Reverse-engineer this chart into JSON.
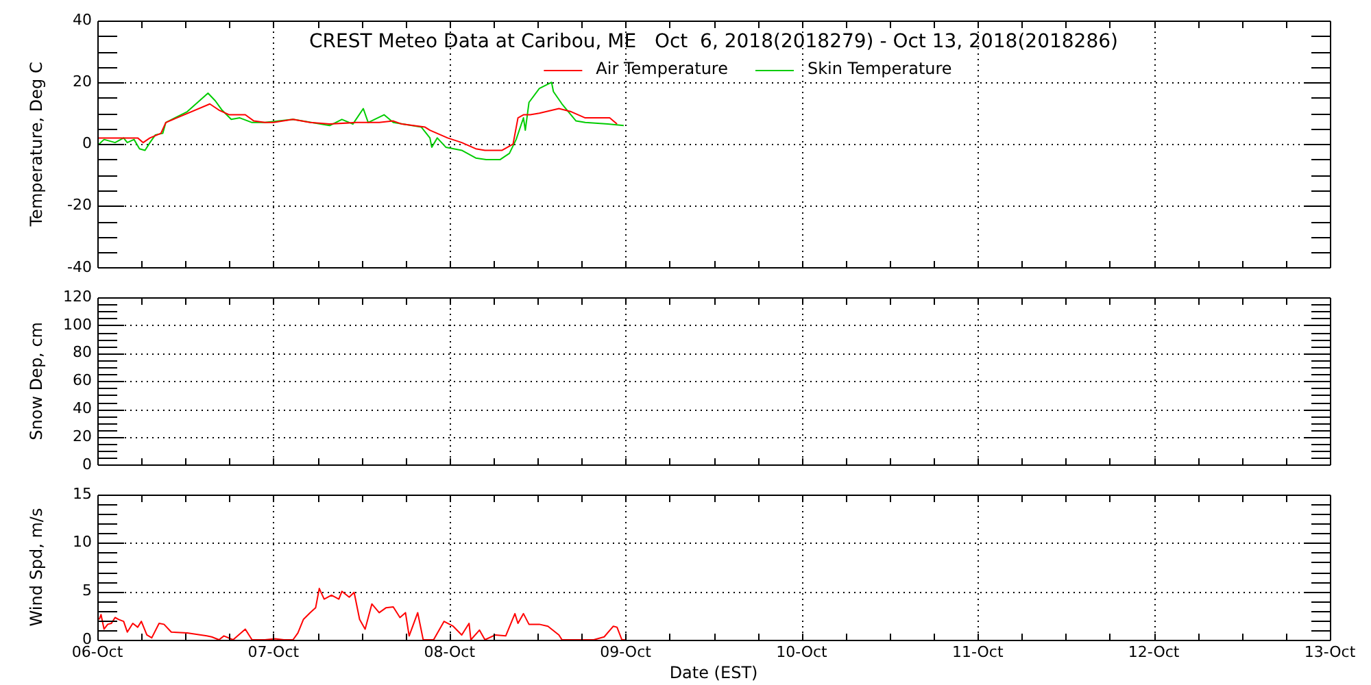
{
  "chart_data": [
    {
      "type": "line",
      "title": "CREST Meteo Data at Caribou, ME   Oct  6, 2018(2018279) - Oct 13, 2018(2018286)",
      "ylabel": "Temperature, Deg C",
      "legend": "top",
      "grid": true,
      "tick_labels": "y",
      "xlim": [
        "2018-10-06",
        "2018-10-13"
      ],
      "xticks": [
        {
          "value": "2018-10-06",
          "label": null
        },
        {
          "value": "2018-10-06T06:00",
          "label": null
        },
        {
          "value": "2018-10-06T12:00",
          "label": null
        },
        {
          "value": "2018-10-06T18:00",
          "label": null
        },
        {
          "value": "2018-10-07",
          "label": null
        },
        {
          "value": "2018-10-07T06:00",
          "label": null
        },
        {
          "value": "2018-10-07T12:00",
          "label": null
        },
        {
          "value": "2018-10-07T18:00",
          "label": null
        },
        {
          "value": "2018-10-08",
          "label": null
        },
        {
          "value": "2018-10-08T06:00",
          "label": null
        },
        {
          "value": "2018-10-08T12:00",
          "label": null
        },
        {
          "value": "2018-10-08T18:00",
          "label": null
        },
        {
          "value": "2018-10-09",
          "label": null
        },
        {
          "value": "2018-10-09T06:00",
          "label": null
        },
        {
          "value": "2018-10-09T12:00",
          "label": null
        },
        {
          "value": "2018-10-09T18:00",
          "label": null
        },
        {
          "value": "2018-10-10",
          "label": null
        },
        {
          "value": "2018-10-10T06:00",
          "label": null
        },
        {
          "value": "2018-10-10T12:00",
          "label": null
        },
        {
          "value": "2018-10-10T18:00",
          "label": null
        },
        {
          "value": "2018-10-11",
          "label": null
        },
        {
          "value": "2018-10-11T06:00",
          "label": null
        },
        {
          "value": "2018-10-11T12:00",
          "label": null
        },
        {
          "value": "2018-10-11T18:00",
          "label": null
        },
        {
          "value": "2018-10-12",
          "label": null
        },
        {
          "value": "2018-10-12T06:00",
          "label": null
        },
        {
          "value": "2018-10-12T12:00",
          "label": null
        },
        {
          "value": "2018-10-12T18:00",
          "label": null
        },
        {
          "value": "2018-10-13",
          "label": null
        }
      ],
      "ylim": [
        -40,
        40
      ],
      "yticks": [
        -40,
        {
          "value": -35,
          "label": null
        },
        {
          "value": -30,
          "label": null
        },
        {
          "value": -25,
          "label": null
        },
        -20,
        {
          "value": -15,
          "label": null
        },
        {
          "value": -10,
          "label": null
        },
        {
          "value": -5,
          "label": null
        },
        0,
        {
          "value": 5,
          "label": null
        },
        {
          "value": 10,
          "label": null
        },
        {
          "value": 15,
          "label": null
        },
        20,
        {
          "value": 25,
          "label": null
        },
        {
          "value": 30,
          "label": null
        },
        {
          "value": 35,
          "label": null
        },
        40
      ],
      "series": [
        {
          "name": "Air Temperature",
          "color": "#ff0000",
          "x": [
            "2018-10-06T00:00",
            "2018-10-06T04:05",
            "2018-10-06T05:30",
            "2018-10-06T06:15",
            "2018-10-06T07:10",
            "2018-10-06T08:40",
            "2018-10-06T09:20",
            "2018-10-06T15:20",
            "2018-10-06T16:35",
            "2018-10-06T18:00",
            "2018-10-06T20:10",
            "2018-10-06T21:20",
            "2018-10-06T22:50",
            "2018-10-07T00:00",
            "2018-10-07T02:40",
            "2018-10-07T05:00",
            "2018-10-07T07:40",
            "2018-10-07T11:15",
            "2018-10-07T14:25",
            "2018-10-07T16:20",
            "2018-10-07T17:30",
            "2018-10-07T20:40",
            "2018-10-07T21:20",
            "2018-10-07T23:45",
            "2018-10-08T01:40",
            "2018-10-08T03:35",
            "2018-10-08T04:50",
            "2018-10-08T07:10",
            "2018-10-08T08:40",
            "2018-10-08T09:20",
            "2018-10-08T10:05",
            "2018-10-08T11:00",
            "2018-10-08T12:15",
            "2018-10-08T14:55",
            "2018-10-08T16:35",
            "2018-10-08T18:30",
            "2018-10-08T21:50",
            "2018-10-08T22:50"
          ],
          "values": [
            2,
            2,
            2,
            0.5,
            2,
            3.5,
            7,
            13,
            11,
            9.5,
            9.5,
            7.5,
            7,
            7,
            8,
            7,
            6.5,
            7,
            7,
            7.5,
            6.5,
            5.5,
            4.5,
            2,
            0.5,
            -1.5,
            -2,
            -2,
            0,
            8.5,
            9.5,
            9.5,
            10,
            11.5,
            10.5,
            8.5,
            8.5,
            6.5
          ]
        },
        {
          "name": "Skin Temperature",
          "color": "#00cc00",
          "x": [
            "2018-10-06T00:00",
            "2018-10-06T00:55",
            "2018-10-06T02:25",
            "2018-10-06T03:35",
            "2018-10-06T04:05",
            "2018-10-06T05:00",
            "2018-10-06T05:45",
            "2018-10-06T06:30",
            "2018-10-06T07:10",
            "2018-10-06T07:55",
            "2018-10-06T08:55",
            "2018-10-06T09:20",
            "2018-10-06T12:15",
            "2018-10-06T15:05",
            "2018-10-06T16:05",
            "2018-10-06T17:00",
            "2018-10-06T18:15",
            "2018-10-06T19:25",
            "2018-10-06T21:05",
            "2018-10-06T22:50",
            "2018-10-07T02:40",
            "2018-10-07T07:40",
            "2018-10-07T09:20",
            "2018-10-07T10:50",
            "2018-10-07T12:15",
            "2018-10-07T12:55",
            "2018-10-07T15:05",
            "2018-10-07T16:20",
            "2018-10-07T20:10",
            "2018-10-07T21:20",
            "2018-10-07T21:35",
            "2018-10-07T22:20",
            "2018-10-07T23:30",
            "2018-10-08T01:40",
            "2018-10-08T03:35",
            "2018-10-08T05:00",
            "2018-10-08T06:55",
            "2018-10-08T08:10",
            "2018-10-08T09:05",
            "2018-10-08T10:05",
            "2018-10-08T10:20",
            "2018-10-08T10:50",
            "2018-10-08T12:15",
            "2018-10-08T13:55",
            "2018-10-08T14:10",
            "2018-10-08T15:20",
            "2018-10-08T17:15",
            "2018-10-08T18:30",
            "2018-10-08T21:35",
            "2018-10-08T23:45"
          ],
          "values": [
            -0.5,
            1.5,
            0.5,
            2,
            0.5,
            1.5,
            -1.5,
            -2,
            0.5,
            3,
            3.5,
            7,
            10.5,
            16.5,
            14,
            11,
            8,
            8.5,
            7,
            7,
            8,
            6,
            8,
            6.5,
            11.5,
            7,
            9.5,
            7,
            5.5,
            2,
            -1,
            2,
            -1,
            -2,
            -4.5,
            -5,
            -5,
            -3,
            1.5,
            8.5,
            4.5,
            13.5,
            18,
            20,
            17,
            13,
            7.5,
            7,
            6.5,
            6
          ]
        }
      ]
    },
    {
      "type": "line",
      "ylabel": "Snow Dep, cm",
      "grid": true,
      "tick_labels": "y",
      "xlim": [
        "2018-10-06",
        "2018-10-13"
      ],
      "xticks": [
        {
          "value": "2018-10-06",
          "label": null
        },
        {
          "value": "2018-10-06T06:00",
          "label": null
        },
        {
          "value": "2018-10-06T12:00",
          "label": null
        },
        {
          "value": "2018-10-06T18:00",
          "label": null
        },
        {
          "value": "2018-10-07",
          "label": null
        },
        {
          "value": "2018-10-07T06:00",
          "label": null
        },
        {
          "value": "2018-10-07T12:00",
          "label": null
        },
        {
          "value": "2018-10-07T18:00",
          "label": null
        },
        {
          "value": "2018-10-08",
          "label": null
        },
        {
          "value": "2018-10-08T06:00",
          "label": null
        },
        {
          "value": "2018-10-08T12:00",
          "label": null
        },
        {
          "value": "2018-10-08T18:00",
          "label": null
        },
        {
          "value": "2018-10-09",
          "label": null
        },
        {
          "value": "2018-10-09T06:00",
          "label": null
        },
        {
          "value": "2018-10-09T12:00",
          "label": null
        },
        {
          "value": "2018-10-09T18:00",
          "label": null
        },
        {
          "value": "2018-10-10",
          "label": null
        },
        {
          "value": "2018-10-10T06:00",
          "label": null
        },
        {
          "value": "2018-10-10T12:00",
          "label": null
        },
        {
          "value": "2018-10-10T18:00",
          "label": null
        },
        {
          "value": "2018-10-11",
          "label": null
        },
        {
          "value": "2018-10-11T06:00",
          "label": null
        },
        {
          "value": "2018-10-11T12:00",
          "label": null
        },
        {
          "value": "2018-10-11T18:00",
          "label": null
        },
        {
          "value": "2018-10-12",
          "label": null
        },
        {
          "value": "2018-10-12T06:00",
          "label": null
        },
        {
          "value": "2018-10-12T12:00",
          "label": null
        },
        {
          "value": "2018-10-12T18:00",
          "label": null
        },
        {
          "value": "2018-10-13",
          "label": null
        }
      ],
      "ylim": [
        0,
        120
      ],
      "yticks": [
        0,
        {
          "value": 5,
          "label": null
        },
        {
          "value": 10,
          "label": null
        },
        {
          "value": 15,
          "label": null
        },
        20,
        {
          "value": 25,
          "label": null
        },
        {
          "value": 30,
          "label": null
        },
        {
          "value": 35,
          "label": null
        },
        40,
        {
          "value": 45,
          "label": null
        },
        {
          "value": 50,
          "label": null
        },
        {
          "value": 55,
          "label": null
        },
        60,
        {
          "value": 65,
          "label": null
        },
        {
          "value": 70,
          "label": null
        },
        {
          "value": 75,
          "label": null
        },
        80,
        {
          "value": 85,
          "label": null
        },
        {
          "value": 90,
          "label": null
        },
        {
          "value": 95,
          "label": null
        },
        100,
        {
          "value": 105,
          "label": null
        },
        {
          "value": 110,
          "label": null
        },
        {
          "value": 115,
          "label": null
        },
        120
      ]
    },
    {
      "type": "line",
      "ylabel": "Wind Spd, m/s",
      "xlabel": "Date (EST)",
      "grid": true,
      "color": "#ff0000",
      "xlim": [
        "2018-10-06",
        "2018-10-13"
      ],
      "xticks": [
        {
          "value": "2018-10-06",
          "label": "06-Oct"
        },
        {
          "value": "2018-10-06T06:00",
          "label": null
        },
        {
          "value": "2018-10-06T12:00",
          "label": null
        },
        {
          "value": "2018-10-06T18:00",
          "label": null
        },
        {
          "value": "2018-10-07",
          "label": "07-Oct"
        },
        {
          "value": "2018-10-07T06:00",
          "label": null
        },
        {
          "value": "2018-10-07T12:00",
          "label": null
        },
        {
          "value": "2018-10-07T18:00",
          "label": null
        },
        {
          "value": "2018-10-08",
          "label": "08-Oct"
        },
        {
          "value": "2018-10-08T06:00",
          "label": null
        },
        {
          "value": "2018-10-08T12:00",
          "label": null
        },
        {
          "value": "2018-10-08T18:00",
          "label": null
        },
        {
          "value": "2018-10-09",
          "label": "09-Oct"
        },
        {
          "value": "2018-10-09T06:00",
          "label": null
        },
        {
          "value": "2018-10-09T12:00",
          "label": null
        },
        {
          "value": "2018-10-09T18:00",
          "label": null
        },
        {
          "value": "2018-10-10",
          "label": "10-Oct"
        },
        {
          "value": "2018-10-10T06:00",
          "label": null
        },
        {
          "value": "2018-10-10T12:00",
          "label": null
        },
        {
          "value": "2018-10-10T18:00",
          "label": null
        },
        {
          "value": "2018-10-11",
          "label": "11-Oct"
        },
        {
          "value": "2018-10-11T06:00",
          "label": null
        },
        {
          "value": "2018-10-11T12:00",
          "label": null
        },
        {
          "value": "2018-10-11T18:00",
          "label": null
        },
        {
          "value": "2018-10-12",
          "label": "12-Oct"
        },
        {
          "value": "2018-10-12T06:00",
          "label": null
        },
        {
          "value": "2018-10-12T12:00",
          "label": null
        },
        {
          "value": "2018-10-12T18:00",
          "label": null
        },
        {
          "value": "2018-10-13",
          "label": "13-Oct"
        }
      ],
      "ylim": [
        0,
        15
      ],
      "yticks": [
        0,
        {
          "value": 1,
          "label": null
        },
        {
          "value": 2,
          "label": null
        },
        {
          "value": 3,
          "label": null
        },
        {
          "value": 4,
          "label": null
        },
        5,
        {
          "value": 6,
          "label": null
        },
        {
          "value": 7,
          "label": null
        },
        {
          "value": 8,
          "label": null
        },
        {
          "value": 9,
          "label": null
        },
        10,
        {
          "value": 11,
          "label": null
        },
        {
          "value": 12,
          "label": null
        },
        {
          "value": 13,
          "label": null
        },
        {
          "value": 14,
          "label": null
        },
        15
      ],
      "x": [
        "2018-10-06T00:15",
        "2018-10-06T00:30",
        "2018-10-06T00:55",
        "2018-10-06T01:25",
        "2018-10-06T01:55",
        "2018-10-06T02:25",
        "2018-10-06T02:55",
        "2018-10-06T03:35",
        "2018-10-06T04:05",
        "2018-10-06T04:50",
        "2018-10-06T05:30",
        "2018-10-06T06:00",
        "2018-10-06T06:45",
        "2018-10-06T07:25",
        "2018-10-06T08:25",
        "2018-10-06T09:05",
        "2018-10-06T10:05",
        "2018-10-06T12:15",
        "2018-10-06T14:55",
        "2018-10-06T15:35",
        "2018-10-06T16:35",
        "2018-10-06T17:15",
        "2018-10-06T18:30",
        "2018-10-06T20:10",
        "2018-10-06T21:05",
        "2018-10-06T22:50",
        "2018-10-07T00:15",
        "2018-10-07T01:25",
        "2018-10-07T02:40",
        "2018-10-07T03:20",
        "2018-10-07T04:05",
        "2018-10-07T05:00",
        "2018-10-07T05:45",
        "2018-10-07T06:15",
        "2018-10-07T06:55",
        "2018-10-07T07:55",
        "2018-10-07T08:55",
        "2018-10-07T09:20",
        "2018-10-07T10:20",
        "2018-10-07T11:00",
        "2018-10-07T11:45",
        "2018-10-07T12:30",
        "2018-10-07T13:25",
        "2018-10-07T14:25",
        "2018-10-07T15:20",
        "2018-10-07T16:20",
        "2018-10-07T17:15",
        "2018-10-07T18:00",
        "2018-10-07T18:30",
        "2018-10-07T19:40",
        "2018-10-07T20:25",
        "2018-10-07T21:50",
        "2018-10-07T23:15",
        "2018-10-08T00:30",
        "2018-10-08T01:40",
        "2018-10-08T02:40",
        "2018-10-08T02:55",
        "2018-10-08T04:05",
        "2018-10-08T04:50",
        "2018-10-08T06:15",
        "2018-10-08T07:40",
        "2018-10-08T08:55",
        "2018-10-08T09:20",
        "2018-10-08T10:05",
        "2018-10-08T10:50",
        "2018-10-08T12:15",
        "2018-10-08T13:25",
        "2018-10-08T14:55",
        "2018-10-08T15:20",
        "2018-10-08T17:15",
        "2018-10-08T19:40",
        "2018-10-08T21:05",
        "2018-10-08T22:20",
        "2018-10-08T22:50",
        "2018-10-08T23:30",
        "2018-10-09T00:00"
      ],
      "values": [
        2.1,
        2.6,
        1.1,
        1.6,
        1.7,
        2.3,
        2.1,
        1.9,
        0.8,
        1.7,
        1.3,
        1.9,
        0.5,
        0.2,
        1.7,
        1.6,
        0.8,
        0.7,
        0.4,
        0.3,
        0,
        0.4,
        0,
        1.1,
        0,
        0,
        0.1,
        0,
        0,
        0.7,
        2.1,
        2.8,
        3.3,
        5.3,
        4.2,
        4.6,
        4.2,
        5,
        4.4,
        4.9,
        2.1,
        1.1,
        3.7,
        2.8,
        3.3,
        3.4,
        2.3,
        2.8,
        0.4,
        2.8,
        0,
        0,
        1.9,
        1.4,
        0.5,
        1.7,
        0,
        1,
        0,
        0.5,
        0.4,
        2.7,
        1.7,
        2.7,
        1.6,
        1.6,
        1.4,
        0.5,
        0,
        0,
        0,
        0.3,
        1.4,
        1.3,
        0,
        0
      ]
    }
  ]
}
